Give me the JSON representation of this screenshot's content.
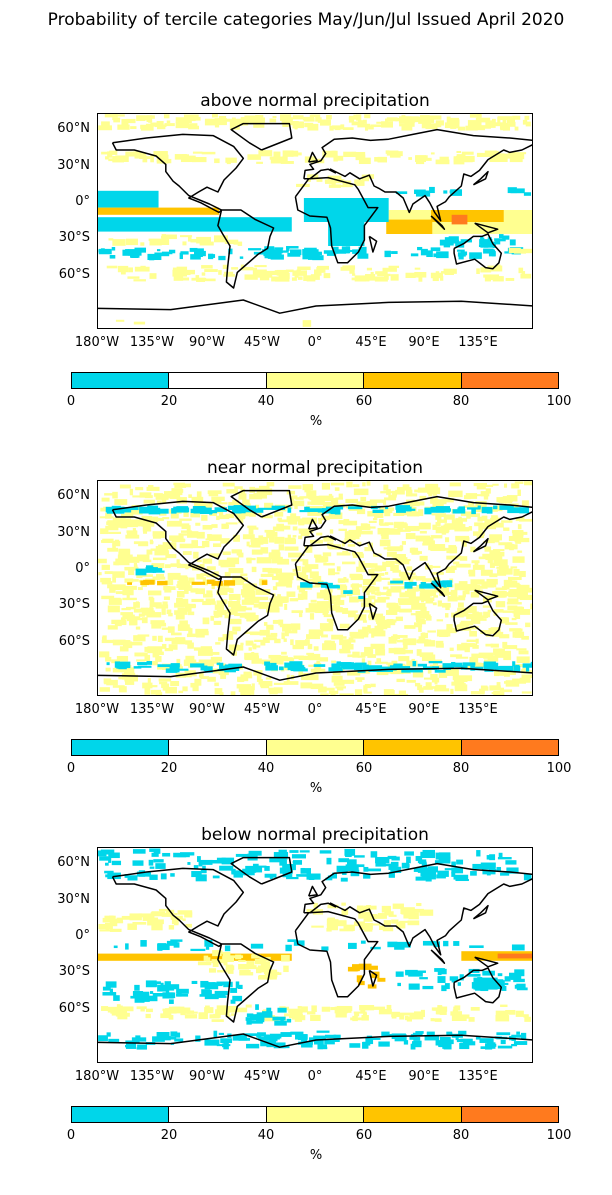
{
  "figure_title": "Probability of tercile categories May/Jun/Jul Issued April 2020",
  "panels": [
    {
      "title": "above normal precipitation",
      "theme": "above"
    },
    {
      "title": "near normal precipitation",
      "theme": "near"
    },
    {
      "title": "below normal precipitation",
      "theme": "below"
    }
  ],
  "axes": {
    "x_ticks": [
      "180°W",
      "135°W",
      "90°W",
      "45°W",
      "0°",
      "45°E",
      "90°E",
      "135°E"
    ],
    "y_ticks": [
      "60°N",
      "30°N",
      "0°",
      "30°S",
      "60°S"
    ]
  },
  "colorbar": {
    "ticks": [
      "0",
      "20",
      "40",
      "60",
      "80",
      "100"
    ],
    "unit": "%",
    "bins": [
      {
        "range": "0-20",
        "color": "#00d6ea"
      },
      {
        "range": "20-40",
        "color": "#ffffff"
      },
      {
        "range": "40-60",
        "color": "#ffff90"
      },
      {
        "range": "60-80",
        "color": "#ffc400"
      },
      {
        "range": "80-100",
        "color": "#ff7a1e"
      }
    ]
  }
}
